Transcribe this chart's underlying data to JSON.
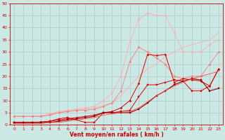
{
  "title": "",
  "xlabel": "Vent moyen/en rafales ( km/h )",
  "bg_color": "#cce8e4",
  "grid_color": "#aacccc",
  "xlim": [
    -0.5,
    23.5
  ],
  "ylim": [
    0,
    50
  ],
  "xticks": [
    0,
    1,
    2,
    3,
    4,
    5,
    6,
    7,
    8,
    9,
    10,
    11,
    12,
    13,
    14,
    15,
    16,
    17,
    18,
    19,
    20,
    21,
    22,
    23
  ],
  "yticks": [
    0,
    5,
    10,
    15,
    20,
    25,
    30,
    35,
    40,
    45,
    50
  ],
  "series": [
    {
      "x": [
        0,
        1,
        2,
        3,
        4,
        5,
        6,
        7,
        8,
        9,
        10,
        11,
        12,
        13,
        14,
        15,
        16,
        17,
        18,
        19,
        20,
        21,
        22,
        23
      ],
      "y": [
        3.5,
        3.5,
        3.5,
        3.5,
        4.5,
        5.0,
        5.5,
        6.0,
        6.5,
        7.0,
        8.0,
        9.0,
        12.0,
        16.0,
        20.0,
        23.0,
        25.0,
        28.0,
        30.0,
        32.0,
        33.0,
        34.0,
        35.0,
        38.0
      ],
      "color": "#ffaaaa",
      "lw": 0.6,
      "marker": null,
      "ms": 0
    },
    {
      "x": [
        0,
        1,
        2,
        3,
        4,
        5,
        6,
        7,
        8,
        9,
        10,
        11,
        12,
        13,
        14,
        15,
        16,
        17,
        18,
        19,
        20,
        21,
        22,
        23
      ],
      "y": [
        3.5,
        3.5,
        3.5,
        3.8,
        4.5,
        5.5,
        6.0,
        6.5,
        7.0,
        7.5,
        10.0,
        13.0,
        20.0,
        34.0,
        43.5,
        46.0,
        45.0,
        45.0,
        38.0,
        30.0,
        30.0,
        30.0,
        33.0,
        35.0
      ],
      "color": "#ffaaaa",
      "lw": 0.6,
      "marker": "D",
      "ms": 1.5
    },
    {
      "x": [
        0,
        1,
        2,
        3,
        4,
        5,
        6,
        7,
        8,
        9,
        10,
        11,
        12,
        13,
        14,
        15,
        16,
        17,
        18,
        19,
        20,
        21,
        22,
        23
      ],
      "y": [
        3.5,
        3.5,
        3.5,
        3.5,
        4.0,
        5.0,
        5.5,
        6.0,
        6.0,
        6.5,
        7.5,
        9.0,
        14.0,
        26.0,
        32.0,
        30.0,
        27.5,
        25.0,
        20.0,
        19.0,
        20.0,
        20.0,
        25.0,
        30.0
      ],
      "color": "#ff7777",
      "lw": 0.6,
      "marker": "D",
      "ms": 1.5
    },
    {
      "x": [
        0,
        1,
        2,
        3,
        4,
        5,
        6,
        7,
        8,
        9,
        10,
        11,
        12,
        13,
        14,
        15,
        16,
        17,
        18,
        19,
        20,
        21,
        22,
        23
      ],
      "y": [
        1.0,
        1.0,
        1.0,
        1.2,
        1.5,
        2.0,
        2.5,
        3.0,
        3.5,
        4.0,
        5.0,
        5.5,
        7.0,
        10.0,
        17.0,
        29.0,
        28.5,
        29.0,
        17.5,
        19.0,
        18.5,
        18.0,
        16.0,
        23.0
      ],
      "color": "#dd0000",
      "lw": 0.7,
      "marker": "D",
      "ms": 1.5
    },
    {
      "x": [
        0,
        1,
        2,
        3,
        4,
        5,
        6,
        7,
        8,
        9,
        10,
        11,
        12,
        13,
        14,
        15,
        16,
        17,
        18,
        19,
        20,
        21,
        22,
        23
      ],
      "y": [
        1.0,
        1.0,
        1.0,
        1.0,
        1.5,
        2.5,
        3.0,
        2.0,
        1.0,
        1.0,
        5.0,
        5.0,
        5.5,
        6.0,
        11.5,
        16.5,
        16.5,
        17.5,
        18.5,
        18.0,
        14.0,
        14.0,
        16.0,
        23.0
      ],
      "color": "#dd0000",
      "lw": 0.7,
      "marker": "s",
      "ms": 1.5
    },
    {
      "x": [
        0,
        1,
        2,
        3,
        4,
        5,
        6,
        7,
        8,
        9,
        10,
        11,
        12,
        13,
        14,
        15,
        16,
        17,
        18,
        19,
        20,
        21,
        22,
        23
      ],
      "y": [
        1.0,
        1.0,
        1.0,
        1.0,
        1.0,
        1.5,
        2.0,
        2.5,
        3.0,
        3.5,
        5.0,
        5.0,
        5.0,
        5.0,
        6.5,
        9.0,
        12.0,
        14.0,
        16.5,
        18.0,
        19.0,
        18.5,
        14.0,
        15.0
      ],
      "color": "#990000",
      "lw": 0.8,
      "marker": "s",
      "ms": 1.5
    },
    {
      "x": [
        0,
        1,
        2,
        3,
        4,
        5,
        6,
        7,
        8,
        9,
        10,
        11,
        12,
        13,
        14,
        15,
        16,
        17,
        18,
        19,
        20,
        21,
        22,
        23
      ],
      "y": [
        0.5,
        0.5,
        0.5,
        0.5,
        1.0,
        1.0,
        1.5,
        2.0,
        2.5,
        3.0,
        4.0,
        4.5,
        5.0,
        5.5,
        7.0,
        9.5,
        12.0,
        14.0,
        16.0,
        17.5,
        19.0,
        20.0,
        21.0,
        22.0
      ],
      "color": "#ff4444",
      "lw": 0.6,
      "marker": null,
      "ms": 0
    }
  ],
  "xlabel_color": "#cc0000",
  "tick_color": "#cc0000",
  "axis_color": "#cc0000",
  "tick_fontsize": 4.5,
  "xlabel_fontsize": 5.5
}
